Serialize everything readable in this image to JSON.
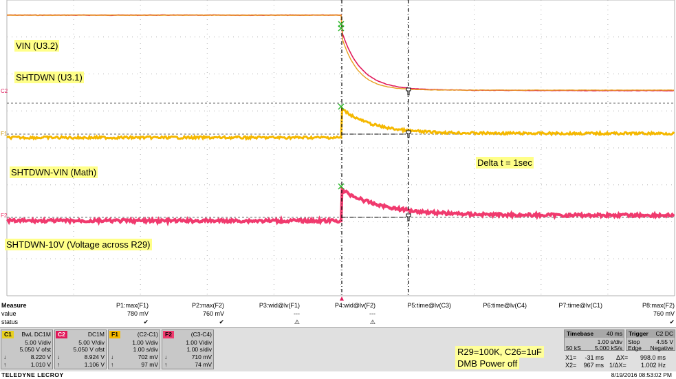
{
  "colors": {
    "c1": "#e0195a",
    "c2": "#e8a020",
    "f1": "#f5b800",
    "f2": "#f03a6e",
    "grid": "#b0b0b0",
    "background": "#ffffff"
  },
  "labels": {
    "vin": "VIN (U3.2)",
    "shtdwn": "SHTDWN (U3.1)",
    "math": "SHTDWN-VIN (Math)",
    "r29": "SHTDWN-10V (Voltage across R29)",
    "delta": "Delta t = 1sec",
    "note1": "R29=100K, C26=1uF",
    "note2": "DMB Power off"
  },
  "markers": {
    "c2": "C2",
    "f1": "F1",
    "f2": "F2"
  },
  "measure": {
    "header": "Measure",
    "row_value": "value",
    "row_status": "status",
    "params": [
      {
        "name": "P1:max(F1)",
        "value": "780 mV",
        "status": "✔"
      },
      {
        "name": "P2:max(F2)",
        "value": "760 mV",
        "status": "✔"
      },
      {
        "name": "P3:wid@lv(F1)",
        "value": "---",
        "status": "⚠"
      },
      {
        "name": "P4:wid@lv(F2)",
        "value": "---",
        "status": "⚠"
      },
      {
        "name": "P5:time@lv(C3)",
        "value": "",
        "status": ""
      },
      {
        "name": "P6:time@lv(C4)",
        "value": "",
        "status": ""
      },
      {
        "name": "P7:time@lv(C1)",
        "value": "",
        "status": ""
      },
      {
        "name": "P8:max(F2)",
        "value": "760 mV",
        "status": "✔"
      }
    ]
  },
  "channels": [
    {
      "tag": "C1",
      "mode": "BwL DC1M",
      "l1": "5.00 V/div",
      "l2": "5.050 V ofst",
      "l3": "8.220 V",
      "l4": "1.010 V",
      "tagcolor": "#e8d020"
    },
    {
      "tag": "C2",
      "mode": "DC1M",
      "l1": "5.00 V/div",
      "l2": "5.050 V ofst",
      "l3": "8.924 V",
      "l4": "1.106 V",
      "tagcolor": "#e0195a"
    },
    {
      "tag": "F1",
      "mode": "(C2-C1)",
      "l1": "1.00 V/div",
      "l2": "1.00 s/div",
      "l3": "702 mV",
      "l4": "97 mV",
      "tagcolor": "#f5b800"
    },
    {
      "tag": "F2",
      "mode": "(C3-C4)",
      "l1": "1.00 V/div",
      "l2": "1.00 s/div",
      "l3": "710 mV",
      "l4": "74 mV",
      "tagcolor": "#f03a6e"
    }
  ],
  "timebase": {
    "title": "Timebase",
    "delay": "40 ms",
    "scale": "1.00 s/div",
    "samples": "50 kS",
    "rate": "5.000 kS/s"
  },
  "trigger": {
    "title": "Trigger",
    "src": "C2 DC",
    "mode": "Stop",
    "level": "4.55 V",
    "type": "Edge",
    "slope": "Negative"
  },
  "cursors": {
    "x1": "X1=",
    "x1v": "-31 ms",
    "dx": "ΔX=",
    "dxv": "998.0 ms",
    "x2": "X2=",
    "x2v": "967 ms",
    "inv": "1/ΔX=",
    "invv": "1.002 Hz"
  },
  "footer": {
    "brand": "TELEDYNE LECROY",
    "timestamp": "8/19/2016 08:53:02 PM"
  }
}
